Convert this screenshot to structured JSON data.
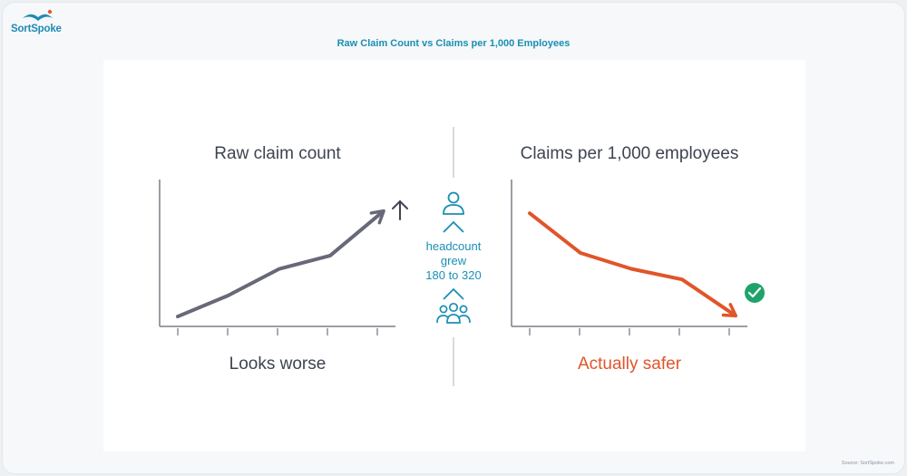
{
  "brand": {
    "logo_text": "SortSpoke"
  },
  "header": {
    "title": "Raw Claim Count vs Claims per 1,000 Employees"
  },
  "footer": {
    "source": "Source: SortSpoke.com"
  },
  "colors": {
    "raw_line": "#676878",
    "rate_line": "#e0552a",
    "accent": "#1a8fb3",
    "check": "#1fa36b",
    "axis": "#7c7f86",
    "divider": "#c9cdd2"
  },
  "middle": {
    "icons": [
      "person-icon",
      "caret-up-icon",
      "caret-up-icon",
      "group-icon"
    ],
    "headcount_text": [
      "headcount",
      "grew",
      "180 to 320"
    ]
  },
  "chart_data": [
    {
      "type": "line",
      "title": "Raw claim count",
      "caption": "Looks worse",
      "trend": "up",
      "x": [
        1,
        2,
        3,
        4,
        5
      ],
      "y": [
        2,
        18,
        38,
        48,
        80
      ],
      "ylim": [
        0,
        100
      ],
      "xlabel": "",
      "ylabel": "",
      "grid": false,
      "end_marker": "up-arrow-icon"
    },
    {
      "type": "line",
      "title": "Claims per 1,000 employees",
      "caption": "Actually safer",
      "trend": "down",
      "x": [
        1,
        2,
        3,
        4,
        5
      ],
      "y": [
        80,
        50,
        38,
        30,
        4
      ],
      "ylim": [
        0,
        100
      ],
      "xlabel": "",
      "ylabel": "",
      "grid": false,
      "end_marker": "check-circle-icon"
    }
  ]
}
